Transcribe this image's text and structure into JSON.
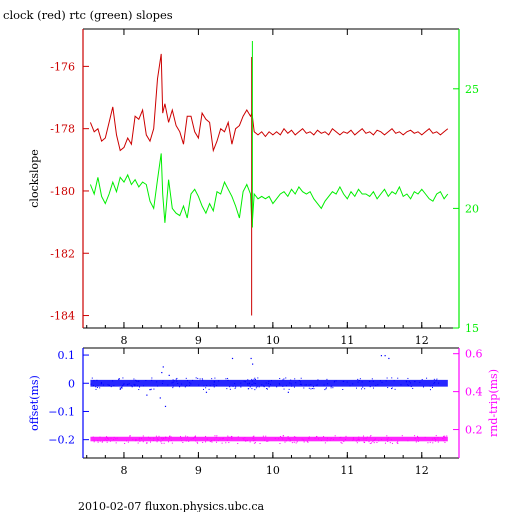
{
  "header": {
    "title": "clock (red) rtc (green) slopes"
  },
  "footer": {
    "text": "2010-02-07 fluxon.physics.ubc.ca"
  },
  "colors": {
    "clock": "#cc0000",
    "rtc": "#00ee00",
    "offset": "#0000ff",
    "rndtrip": "#ff00ff",
    "axes": "#000000"
  },
  "chart_data": [
    {
      "type": "line",
      "title": "clock (red) rtc (green) slopes",
      "ylabel_left": "clockslope",
      "ylabel_right": "",
      "x_ticks": [
        "8",
        "9",
        "10",
        "11",
        "12"
      ],
      "y_left_ticks": [
        "-176",
        "-178",
        "-180",
        "-182",
        "-184"
      ],
      "y_right_ticks": [
        "25",
        "20",
        "15"
      ],
      "xlim": [
        7.45,
        12.5
      ],
      "ylim_left": [
        -184.4,
        -174.8
      ],
      "ylim_right": [
        15,
        27.5
      ],
      "series": [
        {
          "axis": "left",
          "color": "#cc0000",
          "x": [
            7.55,
            7.6,
            7.65,
            7.7,
            7.75,
            7.8,
            7.85,
            7.9,
            7.95,
            8.0,
            8.05,
            8.1,
            8.15,
            8.2,
            8.25,
            8.3,
            8.35,
            8.4,
            8.45,
            8.5,
            8.52,
            8.55,
            8.6,
            8.65,
            8.7,
            8.75,
            8.8,
            8.85,
            8.9,
            8.95,
            9.0,
            9.05,
            9.1,
            9.15,
            9.2,
            9.25,
            9.3,
            9.35,
            9.4,
            9.45,
            9.5,
            9.55,
            9.6,
            9.65,
            9.7,
            9.72,
            9.75,
            9.8,
            9.85,
            9.9,
            9.95,
            10.0,
            10.05,
            10.1,
            10.15,
            10.2,
            10.25,
            10.3,
            10.35,
            10.4,
            10.45,
            10.5,
            10.55,
            10.6,
            10.65,
            10.7,
            10.75,
            10.8,
            10.85,
            10.9,
            10.95,
            11.0,
            11.05,
            11.1,
            11.15,
            11.2,
            11.25,
            11.3,
            11.35,
            11.4,
            11.45,
            11.5,
            11.55,
            11.6,
            11.65,
            11.7,
            11.75,
            11.8,
            11.85,
            11.9,
            11.95,
            12.0,
            12.05,
            12.1,
            12.15,
            12.2,
            12.25,
            12.3,
            12.35
          ],
          "y": [
            -177.8,
            -178.1,
            -178,
            -178.4,
            -178.3,
            -177.8,
            -177.3,
            -178.2,
            -178.7,
            -178.6,
            -178.3,
            -178.5,
            -177.6,
            -177.7,
            -177.4,
            -178.2,
            -178.4,
            -178,
            -176.4,
            -175.6,
            -177.5,
            -177.2,
            -177.8,
            -177.4,
            -177.9,
            -178.1,
            -178.5,
            -177.6,
            -177.6,
            -178.1,
            -178.3,
            -177.5,
            -177.7,
            -177.8,
            -178.7,
            -178.4,
            -178,
            -178.1,
            -177.8,
            -178.5,
            -178,
            -177.9,
            -177.6,
            -177.4,
            -177.6,
            -177.5,
            -178.1,
            -178.2,
            -178.1,
            -178.25,
            -178.1,
            -178.2,
            -178.1,
            -178.2,
            -178.0,
            -178.15,
            -178.05,
            -178.2,
            -178.1,
            -178.0,
            -178.15,
            -178.1,
            -178.2,
            -178.05,
            -178.15,
            -178.1,
            -178.2,
            -178.0,
            -178.1,
            -178.2,
            -178.1,
            -178.15,
            -178.05,
            -178.2,
            -178.1,
            -178.0,
            -178.15,
            -178.1,
            -178.2,
            -178.05,
            -178.1,
            -178.2,
            -178.1,
            -178.0,
            -178.15,
            -178.1,
            -178.2,
            -178.1,
            -178.05,
            -178.15,
            -178.1,
            -178.2,
            -178.1,
            -178.0,
            -178.15,
            -178.1,
            -178.2,
            -178.1,
            -178.0
          ]
        },
        {
          "axis": "right",
          "color": "#00ee00",
          "x": [
            7.55,
            7.6,
            7.65,
            7.7,
            7.75,
            7.8,
            7.85,
            7.9,
            7.95,
            8.0,
            8.05,
            8.1,
            8.15,
            8.2,
            8.25,
            8.3,
            8.35,
            8.4,
            8.45,
            8.5,
            8.52,
            8.55,
            8.6,
            8.65,
            8.7,
            8.75,
            8.8,
            8.85,
            8.9,
            8.95,
            9.0,
            9.05,
            9.1,
            9.15,
            9.2,
            9.25,
            9.3,
            9.35,
            9.4,
            9.45,
            9.5,
            9.55,
            9.6,
            9.65,
            9.7,
            9.72,
            9.75,
            9.8,
            9.85,
            9.9,
            9.95,
            10.0,
            10.05,
            10.1,
            10.15,
            10.2,
            10.25,
            10.3,
            10.35,
            10.4,
            10.45,
            10.5,
            10.55,
            10.6,
            10.65,
            10.7,
            10.75,
            10.8,
            10.85,
            10.9,
            10.95,
            11.0,
            11.05,
            11.1,
            11.15,
            11.2,
            11.25,
            11.3,
            11.35,
            11.4,
            11.45,
            11.5,
            11.55,
            11.6,
            11.65,
            11.7,
            11.75,
            11.8,
            11.85,
            11.9,
            11.95,
            12.0,
            12.05,
            12.1,
            12.15,
            12.2,
            12.25,
            12.3,
            12.35
          ],
          "y": [
            21.0,
            20.6,
            21.3,
            20.5,
            20.2,
            20.6,
            21.1,
            20.7,
            21.3,
            21.1,
            21.4,
            21.0,
            21.2,
            20.9,
            21.1,
            21.0,
            20.3,
            20.0,
            21.2,
            22.3,
            20.6,
            19.4,
            21.2,
            20.0,
            19.8,
            19.7,
            20.1,
            19.6,
            20.6,
            20.8,
            20.5,
            20.1,
            19.8,
            20.2,
            19.9,
            20.7,
            20.6,
            21.1,
            20.8,
            20.5,
            20.1,
            19.6,
            20.7,
            21.0,
            20.6,
            19.2,
            20.6,
            20.4,
            20.5,
            20.4,
            20.5,
            20.2,
            20.4,
            20.6,
            20.7,
            20.5,
            20.8,
            20.6,
            20.9,
            20.7,
            20.6,
            20.7,
            20.4,
            20.2,
            20.0,
            20.3,
            20.5,
            20.7,
            20.6,
            20.9,
            20.6,
            20.4,
            20.7,
            20.5,
            20.8,
            20.6,
            20.6,
            20.5,
            20.7,
            20.4,
            20.6,
            20.8,
            20.5,
            20.7,
            20.6,
            20.9,
            20.5,
            20.6,
            20.4,
            20.7,
            20.6,
            20.8,
            20.6,
            20.4,
            20.3,
            20.6,
            20.7,
            20.4,
            20.6
          ]
        }
      ]
    },
    {
      "type": "scatter",
      "title": "",
      "ylabel_left": "offset(ms)",
      "ylabel_right": "rnd-trip(ms)",
      "x_ticks": [
        "8",
        "9",
        "10",
        "11",
        "12"
      ],
      "y_left_ticks": [
        "0.1",
        "0",
        "−0.1",
        "−0.2"
      ],
      "y_right_ticks": [
        "0.6",
        "0.4",
        "0.2"
      ],
      "xlim": [
        7.45,
        12.5
      ],
      "ylim_left": [
        -0.265,
        0.125
      ],
      "ylim_right": [
        0.05,
        0.63
      ],
      "series": [
        {
          "axis": "left",
          "color": "#0000ff",
          "level": 0.0,
          "spread": 0.012,
          "x_range": [
            7.55,
            12.35
          ]
        },
        {
          "axis": "right",
          "color": "#ff00ff",
          "level": 0.15,
          "spread": 0.012,
          "x_range": [
            7.55,
            12.35
          ]
        }
      ]
    }
  ]
}
